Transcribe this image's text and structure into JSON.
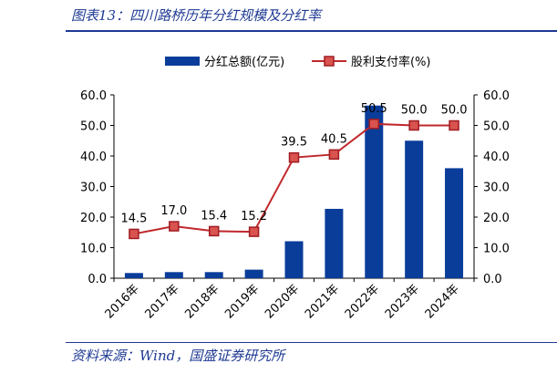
{
  "header": {
    "title": "图表13：四川路桥历年分红规模及分红率"
  },
  "footer": {
    "source": "资料来源：Wind，国盛证券研究所"
  },
  "chart_data": {
    "type": "bar+line",
    "categories": [
      "2016年",
      "2017年",
      "2018年",
      "2019年",
      "2020年",
      "2021年",
      "2022年",
      "2023年",
      "2024年"
    ],
    "series": [
      {
        "name": "分红总额(亿元)",
        "type": "bar",
        "axis": "left",
        "color": "#0a3d9a",
        "values": [
          1.7,
          2.0,
          2.0,
          2.8,
          12.1,
          22.7,
          56.5,
          45.0,
          36.0
        ]
      },
      {
        "name": "股利支付率(%)",
        "type": "line",
        "axis": "right",
        "color": "#c0282d",
        "values": [
          14.5,
          17.0,
          15.4,
          15.2,
          39.5,
          40.5,
          50.5,
          50.0,
          50.0
        ],
        "labels": [
          "14.5",
          "17.0",
          "15.4",
          "15.2",
          "39.5",
          "40.5",
          "50.5",
          "50.0",
          "50.0"
        ]
      }
    ],
    "ylim_left": [
      0,
      60
    ],
    "ylim_right": [
      0,
      60
    ],
    "yticks": [
      "0.0",
      "10.0",
      "20.0",
      "30.0",
      "40.0",
      "50.0",
      "60.0"
    ],
    "grid": false,
    "legend": "top-center"
  }
}
